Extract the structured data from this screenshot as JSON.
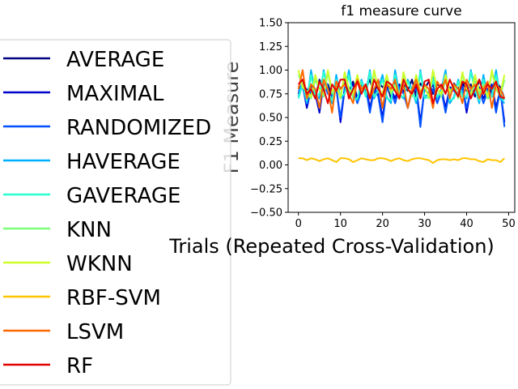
{
  "chart_data": {
    "type": "line",
    "title": "f1 measure curve",
    "xlabel": "Trials (Repeated Cross-Validation)",
    "ylabel": "F1 Measure",
    "xlim": [
      -2.45,
      51.45
    ],
    "ylim": [
      -0.5,
      1.5
    ],
    "xticks": [
      0,
      10,
      20,
      30,
      40,
      50
    ],
    "yticks": [
      -0.5,
      -0.25,
      0.0,
      0.25,
      0.5,
      0.75,
      1.0,
      1.25,
      1.5
    ],
    "ytick_labels": [
      "−0.50",
      "−0.25",
      "0.00",
      "0.25",
      "0.50",
      "0.75",
      "1.00",
      "1.25",
      "1.50"
    ],
    "legend_position": "left, overlapping",
    "x": [
      0,
      1,
      2,
      3,
      4,
      5,
      6,
      7,
      8,
      9,
      10,
      11,
      12,
      13,
      14,
      15,
      16,
      17,
      18,
      19,
      20,
      21,
      22,
      23,
      24,
      25,
      26,
      27,
      28,
      29,
      30,
      31,
      32,
      33,
      34,
      35,
      36,
      37,
      38,
      39,
      40,
      41,
      42,
      43,
      44,
      45,
      46,
      47,
      48,
      49
    ],
    "series": [
      {
        "name": "AVERAGE",
        "color": "#000080",
        "values": [
          0.75,
          0.88,
          0.78,
          0.85,
          0.7,
          0.9,
          0.8,
          0.85,
          0.72,
          0.9,
          0.8,
          0.86,
          0.78,
          0.88,
          0.7,
          0.85,
          0.8,
          0.9,
          0.75,
          0.88,
          0.82,
          0.86,
          0.7,
          0.88,
          0.8,
          0.85,
          0.78,
          0.9,
          0.72,
          0.86,
          0.8,
          0.88,
          0.75,
          0.85,
          0.82,
          0.9,
          0.7,
          0.86,
          0.8,
          0.88,
          0.78,
          0.85,
          0.72,
          0.9,
          0.8,
          0.86,
          0.75,
          0.88,
          0.82,
          0.7
        ]
      },
      {
        "name": "MAXIMAL",
        "color": "#0000cd",
        "values": [
          0.8,
          0.85,
          0.6,
          0.8,
          0.75,
          0.55,
          0.85,
          0.8,
          0.7,
          0.82,
          0.45,
          0.8,
          0.78,
          0.85,
          0.7,
          0.8,
          0.85,
          0.6,
          0.8,
          0.75,
          0.5,
          0.82,
          0.8,
          0.7,
          0.85,
          0.78,
          0.6,
          0.8,
          0.82,
          0.45,
          0.8,
          0.75,
          0.85,
          0.7,
          0.8,
          0.6,
          0.82,
          0.8,
          0.75,
          0.85,
          0.55,
          0.8,
          0.78,
          0.82,
          0.7,
          0.8,
          0.85,
          0.6,
          0.8,
          0.45
        ]
      },
      {
        "name": "RANDOMIZED",
        "color": "#0050ff",
        "values": [
          0.78,
          0.82,
          0.65,
          0.78,
          0.8,
          0.6,
          0.85,
          0.75,
          0.72,
          0.8,
          0.5,
          0.82,
          0.75,
          0.8,
          0.65,
          0.78,
          0.82,
          0.55,
          0.8,
          0.72,
          0.45,
          0.8,
          0.78,
          0.65,
          0.82,
          0.75,
          0.6,
          0.78,
          0.8,
          0.4,
          0.82,
          0.72,
          0.8,
          0.65,
          0.78,
          0.55,
          0.8,
          0.78,
          0.72,
          0.82,
          0.6,
          0.78,
          0.75,
          0.8,
          0.65,
          0.78,
          0.82,
          0.55,
          0.8,
          0.4
        ]
      },
      {
        "name": "HAVERAGE",
        "color": "#00b0ff",
        "values": [
          0.72,
          0.9,
          0.65,
          1.0,
          0.75,
          0.7,
          1.0,
          0.8,
          0.65,
          0.95,
          0.7,
          0.75,
          1.0,
          0.72,
          0.68,
          0.9,
          0.75,
          1.0,
          0.7,
          0.8,
          0.95,
          0.72,
          0.65,
          1.0,
          0.75,
          0.7,
          0.9,
          0.8,
          0.65,
          1.0,
          0.72,
          0.75,
          0.95,
          0.7,
          0.8,
          1.0,
          0.65,
          0.72,
          0.9,
          0.75,
          0.7,
          1.0,
          0.8,
          0.65,
          0.95,
          0.72,
          0.75,
          1.0,
          0.7,
          0.65
        ]
      },
      {
        "name": "GAVERAGE",
        "color": "#29ffce",
        "values": [
          0.7,
          0.85,
          0.68,
          0.95,
          0.72,
          0.75,
          0.98,
          0.78,
          0.68,
          0.9,
          0.72,
          0.75,
          0.95,
          0.7,
          0.7,
          0.88,
          0.72,
          0.98,
          0.72,
          0.78,
          0.9,
          0.7,
          0.68,
          0.95,
          0.72,
          0.72,
          0.88,
          0.78,
          0.68,
          0.98,
          0.7,
          0.72,
          0.9,
          0.72,
          0.78,
          0.95,
          0.68,
          0.7,
          0.88,
          0.72,
          0.72,
          0.98,
          0.78,
          0.68,
          0.9,
          0.7,
          0.72,
          0.95,
          0.72,
          0.68
        ]
      },
      {
        "name": "KNN",
        "color": "#7dff7a",
        "values": [
          0.95,
          0.85,
          0.75,
          0.7,
          0.9,
          0.8,
          0.72,
          0.98,
          0.75,
          0.85,
          0.7,
          0.95,
          0.8,
          0.72,
          0.9,
          0.75,
          0.85,
          0.7,
          0.98,
          0.8,
          0.72,
          0.9,
          0.75,
          0.85,
          0.7,
          0.95,
          0.8,
          0.72,
          0.9,
          0.75,
          0.85,
          0.7,
          0.98,
          0.8,
          0.72,
          0.9,
          0.75,
          0.85,
          0.7,
          0.95,
          0.8,
          0.72,
          0.9,
          0.75,
          0.85,
          0.7,
          0.98,
          0.8,
          0.72,
          0.9
        ]
      },
      {
        "name": "WKNN",
        "color": "#ceff29",
        "values": [
          1.0,
          0.82,
          0.78,
          0.72,
          0.95,
          0.8,
          0.75,
          1.0,
          0.78,
          0.82,
          0.72,
          0.98,
          0.8,
          0.75,
          0.95,
          0.78,
          0.82,
          0.72,
          1.0,
          0.8,
          0.75,
          0.95,
          0.78,
          0.82,
          0.72,
          0.98,
          0.8,
          0.75,
          0.95,
          0.78,
          0.82,
          0.72,
          1.0,
          0.8,
          0.75,
          0.95,
          0.78,
          0.82,
          0.72,
          0.98,
          0.8,
          0.75,
          0.95,
          0.78,
          0.82,
          0.72,
          1.0,
          0.8,
          0.75,
          0.95
        ]
      },
      {
        "name": "RBF-SVM",
        "color": "#ffc400",
        "values": [
          0.07,
          0.07,
          0.05,
          0.07,
          0.06,
          0.04,
          0.06,
          0.07,
          0.05,
          0.03,
          0.07,
          0.07,
          0.06,
          0.03,
          0.05,
          0.07,
          0.06,
          0.05,
          0.05,
          0.07,
          0.07,
          0.06,
          0.04,
          0.06,
          0.07,
          0.05,
          0.04,
          0.06,
          0.07,
          0.07,
          0.06,
          0.05,
          0.02,
          0.05,
          0.06,
          0.06,
          0.05,
          0.06,
          0.05,
          0.07,
          0.07,
          0.06,
          0.06,
          0.04,
          0.03,
          0.06,
          0.05,
          0.05,
          0.03,
          0.07
        ]
      },
      {
        "name": "LSVM",
        "color": "#ff6800",
        "values": [
          0.8,
          1.0,
          0.7,
          0.85,
          0.8,
          0.6,
          0.9,
          0.8,
          0.55,
          0.88,
          0.8,
          0.85,
          0.75,
          0.65,
          0.9,
          0.8,
          0.85,
          0.7,
          0.8,
          0.9,
          0.6,
          0.85,
          0.8,
          0.9,
          0.7,
          0.85,
          0.6,
          0.8,
          0.9,
          0.75,
          0.85,
          0.8,
          0.6,
          0.88,
          0.8,
          0.9,
          0.7,
          0.85,
          0.8,
          0.65,
          0.9,
          0.8,
          0.85,
          0.7,
          0.8,
          0.88,
          0.6,
          0.85,
          0.8,
          0.7
        ]
      },
      {
        "name": "RF",
        "color": "#e40000",
        "values": [
          0.85,
          0.9,
          0.75,
          0.8,
          0.7,
          0.88,
          0.8,
          0.65,
          0.85,
          0.78,
          0.9,
          0.9,
          0.7,
          0.8,
          0.88,
          0.75,
          0.85,
          0.7,
          0.9,
          0.8,
          0.72,
          0.88,
          0.85,
          0.78,
          0.7,
          0.9,
          0.8,
          0.75,
          0.85,
          0.7,
          0.88,
          0.9,
          0.65,
          0.8,
          0.85,
          0.75,
          0.9,
          0.8,
          0.72,
          0.88,
          0.85,
          0.7,
          0.8,
          0.9,
          0.75,
          0.85,
          0.8,
          0.88,
          0.72,
          0.7
        ]
      }
    ]
  }
}
